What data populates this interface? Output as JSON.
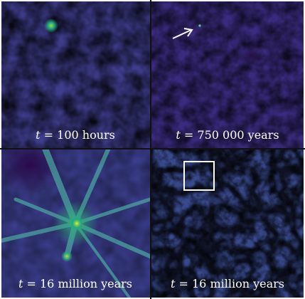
{
  "figure": {
    "panels": [
      {
        "id": "a",
        "label_var": "t",
        "label_eq": " = ",
        "label_value": "100 hours",
        "palette": [
          "#2c1b6b",
          "#3b2e84",
          "#355f8d",
          "#2a8a8c",
          "#26ad81",
          "#6ccd5a"
        ]
      },
      {
        "id": "b",
        "label_var": "t",
        "label_eq": " = ",
        "label_value": "750 000 years",
        "palette": [
          "#2d1660",
          "#3a2478",
          "#433889",
          "#3e4a91",
          "#38598c"
        ],
        "annotation": "arrow"
      },
      {
        "id": "c",
        "label_var": "t",
        "label_eq": " = ",
        "label_value": "16 million years",
        "palette": [
          "#2e0f55",
          "#3b2a7d",
          "#3a5b8e",
          "#2b8e8c",
          "#4fc46a",
          "#fde725"
        ]
      },
      {
        "id": "d",
        "label_var": "t",
        "label_eq": " = ",
        "label_value": "16 million years",
        "palette": [
          "#3b3185",
          "#3a5a8f",
          "#2f7c8e",
          "#25a386",
          "#4fc46a",
          "#9ddb3f"
        ],
        "annotation": "zoom-box"
      }
    ],
    "colors": {
      "divider": "#111111",
      "annotation": "#ffffff",
      "caption": "#ffffff"
    }
  }
}
